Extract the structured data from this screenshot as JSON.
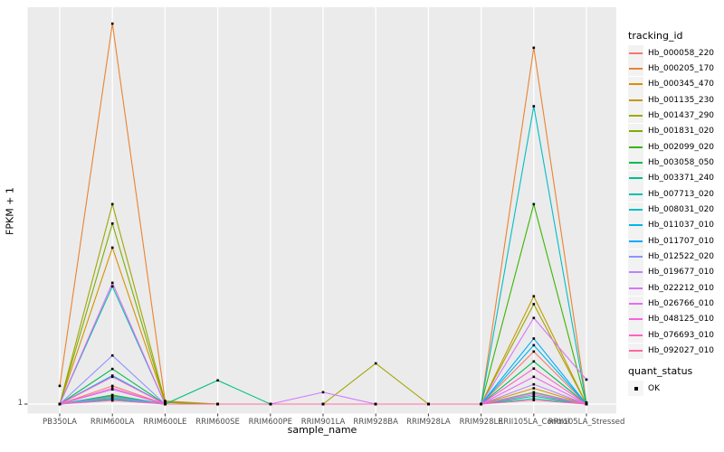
{
  "figure": {
    "y_axis_title": "FPKM + 1",
    "x_axis_title": "sample_name",
    "y_tick_label": "1",
    "colors": {
      "panel_bg": "#EBEBEB",
      "gridline": "#FFFFFF",
      "point": "#000000",
      "tick_mark": "#333333",
      "tick_label": "#4D4D4D",
      "legend_key_bg": "#F2F2F2"
    }
  },
  "legend": {
    "tracking_title": "tracking_id",
    "quant_title": "quant_status",
    "quant_items": [
      {
        "label": "OK",
        "marker": "black-square"
      }
    ]
  },
  "chart_data": {
    "type": "line",
    "title": "",
    "xlabel": "sample_name",
    "ylabel": "FPKM + 1",
    "x_categories": [
      "PB350LA",
      "RRIM600LA",
      "RRIM600LE",
      "RRIM600SE",
      "RRIM600PE",
      "RRIM901LA",
      "RRIM928BA",
      "RRIM928LA",
      "RRIM928LE",
      "RRII105LA_Control",
      "RRII105LA_Stressed"
    ],
    "y_axis": {
      "scale": "log",
      "tick_labels": [
        "1"
      ],
      "note": "Only the FPKM+1 = 1 tick is labeled; series values below are relative heights (0 = the y=1 baseline, 1 = top of panel) read from the plot."
    },
    "grid": {
      "vertical_gridlines": true,
      "horizontal_gridline_at_1": true
    },
    "legend_position": "right",
    "quant_status_all": "OK",
    "series": [
      {
        "name": "Hb_000058_220",
        "color": "#F8766D",
        "values": [
          0,
          0.046,
          0,
          0,
          0,
          0,
          0,
          0,
          0,
          0.133,
          0
        ]
      },
      {
        "name": "Hb_000205_170",
        "color": "#EA8331",
        "values": [
          0.046,
          0.963,
          0.008,
          0,
          0,
          0,
          0,
          0,
          0,
          0.902,
          0.004
        ]
      },
      {
        "name": "Hb_000345_470",
        "color": "#D89000",
        "values": [
          0,
          0.396,
          0.004,
          0,
          0,
          0,
          0,
          0,
          0,
          0.04,
          0
        ]
      },
      {
        "name": "Hb_001135_230",
        "color": "#C09B00",
        "values": [
          0,
          0.018,
          0,
          0,
          0,
          0,
          0,
          0,
          0,
          0.273,
          0
        ]
      },
      {
        "name": "Hb_001437_290",
        "color": "#A3A500",
        "values": [
          0,
          0.506,
          0.006,
          0,
          0,
          0,
          0.103,
          0,
          0,
          0.253,
          0
        ]
      },
      {
        "name": "Hb_001831_020",
        "color": "#7CAE00",
        "values": [
          0,
          0.457,
          0.004,
          0,
          0,
          0,
          0,
          0,
          0,
          0.03,
          0
        ]
      },
      {
        "name": "Hb_002099_020",
        "color": "#39B600",
        "values": [
          0,
          0.023,
          0,
          0,
          0,
          0,
          0,
          0,
          0,
          0.506,
          0
        ]
      },
      {
        "name": "Hb_003058_050",
        "color": "#00BB4E",
        "values": [
          0,
          0.089,
          0,
          0,
          0,
          0,
          0,
          0,
          0,
          0.108,
          0
        ]
      },
      {
        "name": "Hb_003371_240",
        "color": "#00C087",
        "values": [
          0,
          0.014,
          0,
          0.06,
          0,
          0,
          0,
          0,
          0,
          0.02,
          0
        ]
      },
      {
        "name": "Hb_007713_020",
        "color": "#00C1AB",
        "values": [
          0,
          0.298,
          0,
          0,
          0,
          0,
          0,
          0,
          0,
          0.014,
          0
        ]
      },
      {
        "name": "Hb_008031_020",
        "color": "#00BFC4",
        "values": [
          0,
          0.012,
          0,
          0,
          0,
          0,
          0,
          0,
          0,
          0.754,
          0
        ]
      },
      {
        "name": "Hb_011037_010",
        "color": "#00B8E7",
        "values": [
          0,
          0.021,
          0,
          0,
          0,
          0,
          0,
          0,
          0,
          0.149,
          0
        ]
      },
      {
        "name": "Hb_011707_010",
        "color": "#00ACFC",
        "values": [
          0,
          0.072,
          0,
          0,
          0,
          0,
          0,
          0,
          0,
          0.166,
          0
        ]
      },
      {
        "name": "Hb_012522_020",
        "color": "#8B93FF",
        "values": [
          0,
          0.123,
          0,
          0,
          0,
          0,
          0,
          0,
          0,
          0.028,
          0
        ]
      },
      {
        "name": "Hb_019677_010",
        "color": "#B983FF",
        "values": [
          0,
          0.016,
          0,
          0,
          0,
          0,
          0,
          0,
          0,
          0.05,
          0
        ]
      },
      {
        "name": "Hb_022212_010",
        "color": "#D575FE",
        "values": [
          0,
          0.037,
          0,
          0,
          0,
          0.03,
          0,
          0,
          0,
          0.218,
          0.062
        ]
      },
      {
        "name": "Hb_026766_010",
        "color": "#EA6AF1",
        "values": [
          0,
          0.307,
          0,
          0,
          0,
          0,
          0,
          0,
          0,
          0.069,
          0
        ]
      },
      {
        "name": "Hb_048125_010",
        "color": "#F863DF",
        "values": [
          0,
          0.04,
          0,
          0,
          0,
          0,
          0,
          0,
          0,
          0.024,
          0
        ]
      },
      {
        "name": "Hb_076693_010",
        "color": "#FF61C7",
        "values": [
          0,
          0.069,
          0,
          0,
          0,
          0,
          0,
          0,
          0,
          0.09,
          0
        ]
      },
      {
        "name": "Hb_092027_010",
        "color": "#FF689E",
        "values": [
          0,
          0.009,
          0,
          0,
          0,
          0,
          0,
          0,
          0,
          0.01,
          0
        ]
      }
    ]
  }
}
